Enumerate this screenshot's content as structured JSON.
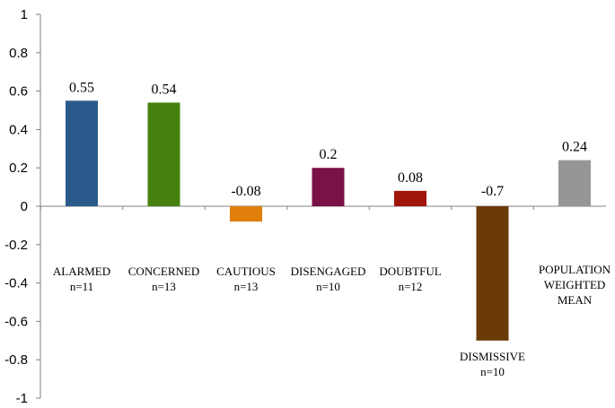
{
  "chart_data": {
    "type": "bar",
    "title": "",
    "xlabel": "",
    "ylabel": "",
    "ylim": [
      -1,
      1
    ],
    "yticks": [
      "1",
      "0.8",
      "0.6",
      "0.4",
      "0.2",
      "0",
      "-0.2",
      "-0.4",
      "-0.6",
      "-0.8",
      "-1"
    ],
    "ytick_values": [
      1,
      0.8,
      0.6,
      0.4,
      0.2,
      0,
      -0.2,
      -0.4,
      -0.6,
      -0.8,
      -1
    ],
    "grid": false,
    "legend": "none",
    "bars": [
      {
        "category": [
          "ALARMED",
          "n=11"
        ],
        "value": 0.55,
        "value_label": "0.55",
        "color": "#2a5a8c"
      },
      {
        "category": [
          "CONCERNED",
          "n=13"
        ],
        "value": 0.54,
        "value_label": "0.54",
        "color": "#46800f"
      },
      {
        "category": [
          "CAUTIOUS",
          "n=13"
        ],
        "value": -0.08,
        "value_label": "-0.08",
        "color": "#e07e0a"
      },
      {
        "category": [
          "DISENGAGED",
          "n=10"
        ],
        "value": 0.2,
        "value_label": "0.2",
        "color": "#7a1248"
      },
      {
        "category": [
          "DOUBTFUL",
          "n=12"
        ],
        "value": 0.08,
        "value_label": "0.08",
        "color": "#a0160a"
      },
      {
        "category": [
          "DISMISSIVE",
          "n=10"
        ],
        "value": -0.7,
        "value_label": "-0.7",
        "color": "#6b3a06"
      },
      {
        "category": [
          "POPULATION",
          "WEIGHTED",
          "MEAN"
        ],
        "value": 0.24,
        "value_label": "0.24",
        "color": "#969696"
      }
    ]
  }
}
